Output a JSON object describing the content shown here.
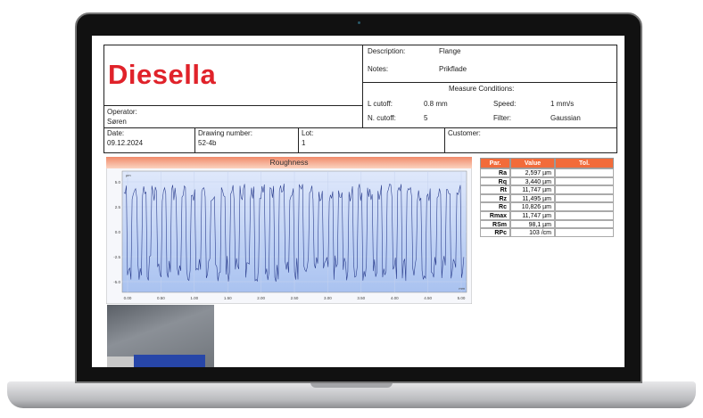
{
  "header": {
    "logo": "Diesella",
    "description_label": "Description:",
    "description": "Flange",
    "notes_label": "Notes:",
    "notes": "Prikflade",
    "conditions_title": "Measure Conditions:",
    "l_cutoff_label": "L cutoff:",
    "l_cutoff": "0.8 mm",
    "speed_label": "Speed:",
    "speed": "1 mm/s",
    "n_cutoff_label": "N. cutoff:",
    "n_cutoff": "5",
    "filter_label": "Filter:",
    "filter": "Gaussian",
    "operator_label": "Operator:",
    "operator": "Søren",
    "date_label": "Date:",
    "date": "09.12.2024",
    "drawing_label": "Drawing number:",
    "drawing": "52-4b",
    "lot_label": "Lot:",
    "lot": "1",
    "customer_label": "Customer:"
  },
  "profile_chart": {
    "title": "Roughness",
    "y_unit": "µm",
    "x_unit": "mm",
    "yticks": [
      "5.0",
      "2.5",
      "0.0",
      "-2.5",
      "-5.0"
    ],
    "xticks": [
      "0.00",
      "0.50",
      "1.00",
      "1.50",
      "2.00",
      "2.50",
      "3.00",
      "3.50",
      "4.00",
      "4.50",
      "5.00"
    ]
  },
  "table": {
    "columns": [
      "Par.",
      "Value",
      "Tol."
    ],
    "rows": [
      [
        "Ra",
        "2,597 µm"
      ],
      [
        "Rq",
        "3,440 µm"
      ],
      [
        "Rt",
        "11,747 µm"
      ],
      [
        "Rz",
        "11,495 µm"
      ],
      [
        "Rc",
        "10,826 µm"
      ],
      [
        "Rmax",
        "11,747 µm"
      ],
      [
        "RSm",
        "98,1 µm"
      ],
      [
        "RPc",
        "103 /cm"
      ]
    ]
  }
}
